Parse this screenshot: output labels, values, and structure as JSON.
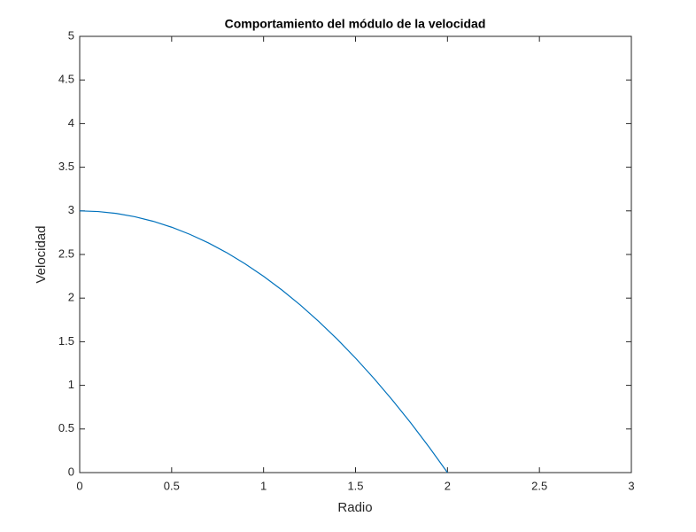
{
  "chart_data": {
    "type": "line",
    "title": "Comportamiento del módulo de la velocidad",
    "x_label": "Radio",
    "y_label": "Velocidad",
    "x": [
      0,
      0.1,
      0.2,
      0.3,
      0.4,
      0.5,
      0.6,
      0.7,
      0.8,
      0.9,
      1.0,
      1.1,
      1.2,
      1.3,
      1.4,
      1.5,
      1.6,
      1.7,
      1.8,
      1.9,
      2.0
    ],
    "series": [
      {
        "color": "#0072bd",
        "values": [
          3,
          2.9925,
          2.97,
          2.9325,
          2.88,
          2.8125,
          2.73,
          2.6325,
          2.52,
          2.3925,
          2.25,
          2.0925,
          1.92,
          1.7325,
          1.53,
          1.3125,
          1.08,
          0.8325,
          0.57,
          0.2925,
          0
        ]
      }
    ],
    "xlim": [
      0,
      3
    ],
    "xticks": [
      0,
      0.5,
      1,
      1.5,
      2,
      2.5,
      3
    ],
    "ylim": [
      0,
      5
    ],
    "yticks": [
      0,
      0.5,
      1,
      1.5,
      2,
      2.5,
      3,
      3.5,
      4,
      4.5,
      5
    ],
    "grid": false
  }
}
